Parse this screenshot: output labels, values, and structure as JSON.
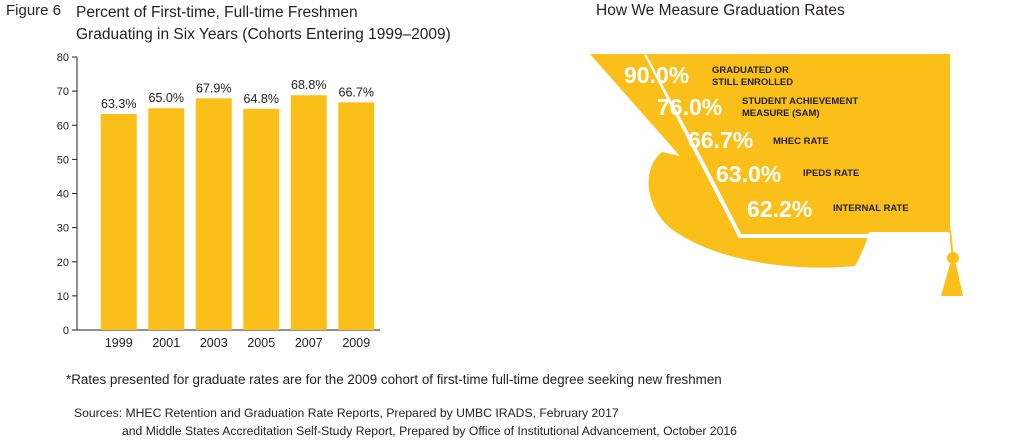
{
  "figure_label": "Figure 6",
  "chart_title_line1": "Percent of First-time, Full-time Freshmen",
  "chart_title_line2": "Graduating in Six Years (Cohorts Entering 1999–2009)",
  "right_title": "How We Measure Graduation Rates",
  "chart_data": {
    "type": "bar",
    "categories": [
      "1999",
      "2001",
      "2003",
      "2005",
      "2007",
      "2009"
    ],
    "values": [
      63.3,
      65.0,
      67.9,
      64.8,
      68.8,
      66.7
    ],
    "data_labels": [
      "63.3%",
      "65.0%",
      "67.9%",
      "64.8%",
      "68.8%",
      "66.7%"
    ],
    "yticks": [
      "0",
      "10",
      "20",
      "30",
      "40",
      "50",
      "60",
      "70",
      "80"
    ],
    "ylim": [
      0,
      80
    ],
    "grid": false,
    "bar_color": "#fbbf1a"
  },
  "measures": [
    {
      "value": "90.0%",
      "label_lines": [
        "GRADUATED OR",
        "STILL ENROLLED"
      ]
    },
    {
      "value": "76.0%",
      "label_lines": [
        "STUDENT ACHIEVEMENT",
        "MEASURE (SAM)"
      ]
    },
    {
      "value": "66.7%",
      "label_lines": [
        "MHEC RATE"
      ]
    },
    {
      "value": "63.0%",
      "label_lines": [
        "IPEDS RATE"
      ]
    },
    {
      "value": "62.2%",
      "label_lines": [
        "INTERNAL RATE"
      ]
    }
  ],
  "cap_color": "#fbbf1a",
  "footnote": "*Rates presented  for graduate rates are for the 2009 cohort of first-time full-time degree seeking new freshmen",
  "sources_line1": "Sources: MHEC Retention and Graduation Rate Reports, Prepared by UMBC IRADS, February 2017",
  "sources_line2": "and Middle States Accreditation Self-Study Report, Prepared by Office of Institutional Advancement, October 2016"
}
